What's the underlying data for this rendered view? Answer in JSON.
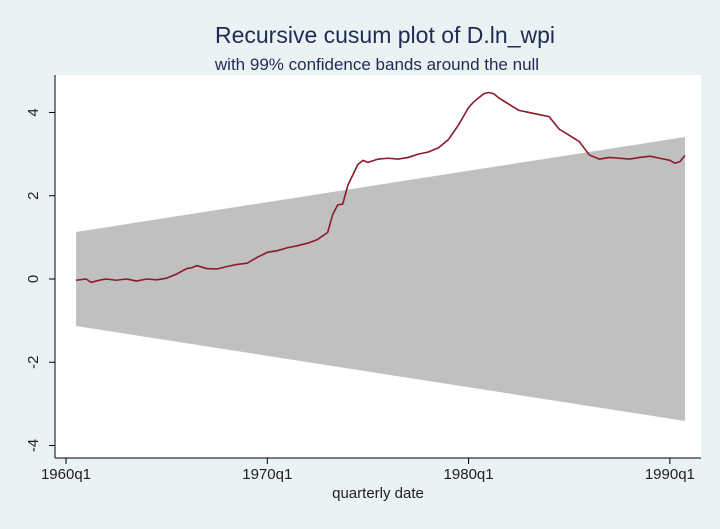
{
  "chart_data": {
    "type": "line",
    "title": "Recursive cusum plot of D.ln_wpi",
    "subtitle": "with 99% confidence bands around the null",
    "xlabel": "quarterly date",
    "ylabel": "",
    "xlim": [
      1960.0,
      1991.0
    ],
    "ylim": [
      -4.3,
      4.9
    ],
    "x_ticks": [
      {
        "value": 1960.0,
        "label": "1960q1"
      },
      {
        "value": 1970.0,
        "label": "1970q1"
      },
      {
        "value": 1980.0,
        "label": "1980q1"
      },
      {
        "value": 1990.0,
        "label": "1990q1"
      }
    ],
    "y_ticks": [
      {
        "value": -4,
        "label": "-4"
      },
      {
        "value": -2,
        "label": "-2"
      },
      {
        "value": 0,
        "label": "0"
      },
      {
        "value": 2,
        "label": "2"
      },
      {
        "value": 4,
        "label": "4"
      }
    ],
    "grid": false,
    "band": {
      "x": [
        1960.5,
        1990.75
      ],
      "upper": [
        1.13,
        3.41
      ],
      "lower": [
        -1.13,
        -3.41
      ],
      "color": "#c0c0c0"
    },
    "series": [
      {
        "color": "#8b1a2b",
        "x": [
          1960.5,
          1961.0,
          1961.25,
          1961.75,
          1962.0,
          1962.5,
          1963.0,
          1963.5,
          1964.0,
          1964.5,
          1965.0,
          1965.5,
          1966.0,
          1966.25,
          1966.5,
          1967.0,
          1967.5,
          1968.0,
          1968.5,
          1969.0,
          1969.5,
          1970.0,
          1970.5,
          1971.0,
          1971.5,
          1972.0,
          1972.5,
          1973.0,
          1973.25,
          1973.5,
          1973.75,
          1974.0,
          1974.25,
          1974.5,
          1974.75,
          1975.0,
          1975.5,
          1976.0,
          1976.5,
          1977.0,
          1977.5,
          1978.0,
          1978.5,
          1979.0,
          1979.5,
          1980.0,
          1980.25,
          1980.5,
          1980.75,
          1981.0,
          1981.25,
          1981.5,
          1982.0,
          1982.5,
          1983.0,
          1983.5,
          1984.0,
          1984.5,
          1985.0,
          1985.5,
          1986.0,
          1986.5,
          1987.0,
          1987.5,
          1988.0,
          1988.5,
          1989.0,
          1989.5,
          1990.0,
          1990.25,
          1990.5,
          1990.75
        ],
        "y": [
          -0.03,
          0.0,
          -0.08,
          -0.02,
          0.0,
          -0.03,
          0.0,
          -0.05,
          0.0,
          -0.02,
          0.02,
          0.12,
          0.25,
          0.27,
          0.32,
          0.25,
          0.24,
          0.3,
          0.35,
          0.38,
          0.52,
          0.64,
          0.68,
          0.75,
          0.8,
          0.86,
          0.95,
          1.12,
          1.55,
          1.78,
          1.8,
          2.25,
          2.5,
          2.75,
          2.85,
          2.8,
          2.88,
          2.9,
          2.88,
          2.92,
          3.0,
          3.05,
          3.15,
          3.35,
          3.7,
          4.12,
          4.25,
          4.35,
          4.45,
          4.48,
          4.45,
          4.35,
          4.2,
          4.05,
          4.0,
          3.95,
          3.9,
          3.6,
          3.45,
          3.3,
          2.98,
          2.88,
          2.92,
          2.9,
          2.88,
          2.92,
          2.95,
          2.9,
          2.85,
          2.78,
          2.82,
          2.97
        ]
      }
    ]
  }
}
